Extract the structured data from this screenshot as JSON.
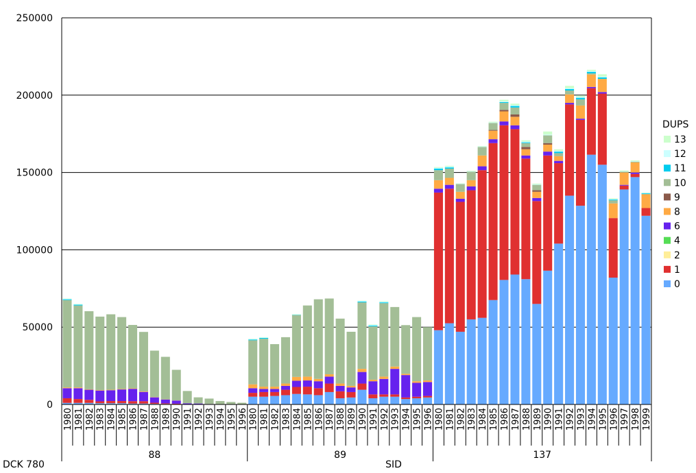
{
  "chart_data": {
    "type": "bar",
    "stacked": true,
    "title": "",
    "xlabel": "SID",
    "corner_label": "DCK 780",
    "ylabel": "",
    "ylim": [
      0,
      250000
    ],
    "yticks": [
      0,
      50000,
      100000,
      150000,
      200000,
      250000
    ],
    "grid": true,
    "legend_title": "DUPS",
    "legend_position": "right",
    "groups": [
      {
        "label": "88",
        "years": [
          "1980",
          "1981",
          "1982",
          "1983",
          "1984",
          "1985",
          "1986",
          "1987",
          "1988",
          "1989",
          "1990",
          "1991",
          "1992",
          "1993",
          "1994",
          "1995",
          "1996"
        ]
      },
      {
        "label": "89",
        "years": [
          "1980",
          "1981",
          "1982",
          "1983",
          "1984",
          "1985",
          "1986",
          "1987",
          "1988",
          "1989",
          "1990",
          "1991",
          "1992",
          "1993",
          "1994",
          "1995",
          "1996"
        ]
      },
      {
        "label": "137",
        "years": [
          "1980",
          "1981",
          "1982",
          "1983",
          "1984",
          "1985",
          "1986",
          "1987",
          "1988",
          "1989",
          "1990",
          "1991",
          "1992",
          "1993",
          "1994",
          "1995",
          "1996",
          "1997",
          "1998",
          "1999"
        ]
      }
    ],
    "series": [
      {
        "name": "0",
        "color": "#66aaff",
        "values": [
          1000,
          1000,
          1000,
          800,
          800,
          800,
          600,
          600,
          400,
          300,
          200,
          100,
          0,
          0,
          0,
          0,
          0,
          5000,
          5000,
          5500,
          6000,
          6800,
          6500,
          6000,
          8000,
          4000,
          4500,
          9500,
          4000,
          5000,
          5000,
          3500,
          4000,
          4500,
          48000,
          52500,
          47000,
          55000,
          56000,
          67500,
          80500,
          84000,
          81000,
          65000,
          86500,
          104000,
          135000,
          128500,
          161500,
          155000,
          82000,
          139000,
          147000,
          122000
        ]
      },
      {
        "name": "1",
        "color": "#e03030",
        "values": [
          3000,
          2500,
          2000,
          1200,
          1400,
          1400,
          1500,
          1500,
          700,
          400,
          300,
          100,
          100,
          0,
          0,
          0,
          0,
          2500,
          3000,
          2500,
          3500,
          4500,
          5000,
          4500,
          5500,
          4500,
          3500,
          4000,
          2500,
          1500,
          1500,
          1000,
          1000,
          1000,
          89000,
          87000,
          84000,
          83500,
          95500,
          101500,
          100000,
          94000,
          78000,
          66500,
          74500,
          52000,
          59000,
          55500,
          43000,
          46000,
          38500,
          2500,
          2000,
          5000
        ]
      },
      {
        "name": "2",
        "color": "#ffee99",
        "values": [
          0,
          0,
          0,
          0,
          0,
          0,
          0,
          0,
          0,
          0,
          0,
          0,
          0,
          0,
          0,
          0,
          0,
          0,
          0,
          0,
          0,
          0,
          0,
          0,
          0,
          0,
          0,
          0,
          0,
          0,
          0,
          0,
          0,
          0,
          0,
          0,
          0,
          0,
          0,
          0,
          0,
          0,
          0,
          0,
          0,
          0,
          0,
          0,
          0,
          0,
          0,
          0,
          0,
          0
        ]
      },
      {
        "name": "4",
        "color": "#55dd55",
        "values": [
          0,
          0,
          0,
          0,
          0,
          0,
          0,
          0,
          0,
          0,
          0,
          0,
          0,
          0,
          0,
          0,
          0,
          0,
          0,
          0,
          0,
          0,
          0,
          0,
          0,
          0,
          0,
          0,
          0,
          0,
          0,
          0,
          0,
          0,
          0,
          0,
          0,
          0,
          0,
          0,
          0,
          0,
          0,
          0,
          0,
          0,
          0,
          0,
          0,
          0,
          0,
          0,
          0,
          0
        ]
      },
      {
        "name": "6",
        "color": "#6622ee",
        "values": [
          6500,
          7000,
          6500,
          7000,
          7000,
          7500,
          8000,
          6000,
          3500,
          2500,
          2000,
          500,
          500,
          300,
          200,
          100,
          100,
          3000,
          2000,
          2000,
          2500,
          4000,
          4000,
          4500,
          4500,
          3500,
          3000,
          7500,
          8500,
          10000,
          16500,
          14500,
          9000,
          9000,
          2500,
          2500,
          2000,
          2500,
          2500,
          2500,
          2500,
          2500,
          2000,
          2000,
          2500,
          1500,
          1000,
          800,
          800,
          1000,
          0,
          500,
          1000,
          0
        ]
      },
      {
        "name": "8",
        "color": "#ffaa44",
        "values": [
          500,
          500,
          300,
          300,
          300,
          300,
          300,
          300,
          200,
          100,
          100,
          0,
          0,
          0,
          0,
          0,
          0,
          2500,
          1500,
          1500,
          1500,
          2500,
          2500,
          1500,
          1500,
          1500,
          1000,
          2000,
          1000,
          1500,
          1500,
          800,
          1000,
          1000,
          5500,
          4500,
          4500,
          4000,
          7000,
          5500,
          6500,
          5500,
          4000,
          4000,
          4500,
          3000,
          5500,
          8500,
          8000,
          8500,
          9500,
          8000,
          6500,
          9000
        ]
      },
      {
        "name": "9",
        "color": "#8b5a4a",
        "values": [
          0,
          0,
          0,
          0,
          0,
          0,
          0,
          0,
          0,
          0,
          0,
          0,
          0,
          0,
          0,
          0,
          0,
          0,
          0,
          0,
          0,
          0,
          0,
          0,
          0,
          0,
          0,
          0,
          0,
          0,
          0,
          0,
          0,
          0,
          0,
          0,
          0,
          0,
          0,
          500,
          1000,
          1500,
          1500,
          1000,
          1000,
          0,
          0,
          0,
          0,
          0,
          0,
          0,
          0,
          0
        ]
      },
      {
        "name": "10",
        "color": "#a3be96",
        "values": [
          56500,
          53000,
          50500,
          47500,
          48800,
          46500,
          41000,
          38500,
          30000,
          27500,
          19800,
          8000,
          4000,
          3500,
          2000,
          1500,
          1000,
          28500,
          31000,
          27500,
          30000,
          40000,
          46000,
          51500,
          49000,
          42000,
          35000,
          43000,
          34500,
          47500,
          38500,
          31500,
          41500,
          34500,
          6500,
          6000,
          5000,
          5500,
          5500,
          4500,
          4500,
          4500,
          2500,
          3500,
          5000,
          2000,
          2500,
          4000,
          800,
          0,
          2000,
          500,
          500,
          0
        ]
      },
      {
        "name": "11",
        "color": "#00ccee",
        "values": [
          500,
          500,
          0,
          0,
          0,
          0,
          0,
          0,
          0,
          0,
          0,
          0,
          0,
          0,
          0,
          0,
          0,
          500,
          500,
          0,
          0,
          200,
          0,
          0,
          0,
          0,
          0,
          500,
          500,
          500,
          0,
          0,
          0,
          0,
          1000,
          800,
          0,
          0,
          0,
          0,
          500,
          1000,
          500,
          0,
          0,
          1000,
          1000,
          1000,
          1000,
          1000,
          500,
          0,
          0,
          500
        ]
      },
      {
        "name": "12",
        "color": "#ccffff",
        "values": [
          300,
          300,
          0,
          0,
          0,
          0,
          0,
          0,
          0,
          0,
          0,
          0,
          0,
          0,
          0,
          0,
          0,
          300,
          300,
          0,
          0,
          200,
          0,
          0,
          0,
          0,
          0,
          500,
          500,
          500,
          0,
          0,
          0,
          0,
          500,
          500,
          300,
          300,
          300,
          300,
          500,
          500,
          500,
          300,
          500,
          500,
          500,
          500,
          500,
          500,
          300,
          300,
          300,
          300
        ]
      },
      {
        "name": "13",
        "color": "#ccffcc",
        "values": [
          200,
          200,
          0,
          0,
          0,
          0,
          0,
          0,
          0,
          0,
          0,
          0,
          0,
          0,
          0,
          0,
          0,
          200,
          200,
          0,
          0,
          200,
          0,
          0,
          0,
          0,
          0,
          200,
          300,
          300,
          0,
          0,
          0,
          0,
          500,
          500,
          200,
          300,
          300,
          500,
          1000,
          1000,
          800,
          500,
          2000,
          1000,
          1500,
          1000,
          800,
          1500,
          500,
          500,
          500,
          300
        ]
      }
    ]
  }
}
